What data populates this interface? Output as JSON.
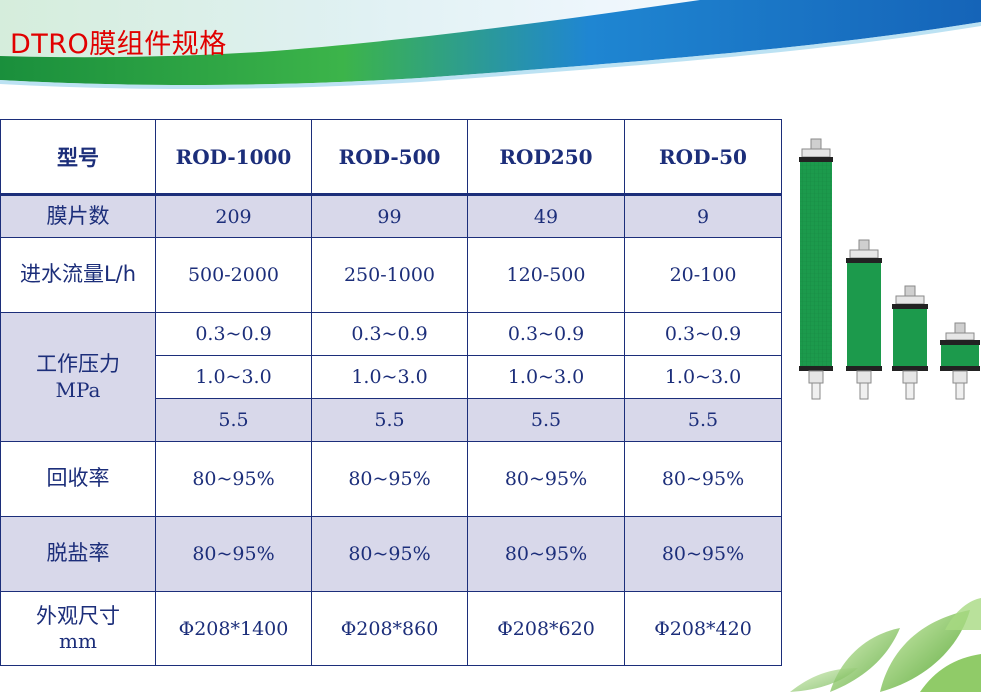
{
  "title": "DTRO膜组件规格",
  "table": {
    "header": {
      "label": "型号",
      "models": [
        "ROD-1000",
        "ROD-500",
        "ROD250",
        "ROD-50"
      ]
    },
    "rows": {
      "membranes": {
        "label": "膜片数",
        "values": [
          "209",
          "99",
          "49",
          "9"
        ]
      },
      "inflow": {
        "label": "进水流量L/h",
        "values": [
          "500-2000",
          "250-1000",
          "120-500",
          "20-100"
        ]
      },
      "pressure": {
        "label": "工作压力",
        "unit": "MPa",
        "rows": [
          [
            "0.3~0.9",
            "0.3~0.9",
            "0.3~0.9",
            "0.3~0.9"
          ],
          [
            "1.0~3.0",
            "1.0~3.0",
            "1.0~3.0",
            "1.0~3.0"
          ],
          [
            "5.5",
            "5.5",
            "5.5",
            "5.5"
          ]
        ]
      },
      "recovery": {
        "label": "回收率",
        "values": [
          "80~95%",
          "80~95%",
          "80~95%",
          "80~95%"
        ]
      },
      "desalination": {
        "label": "脱盐率",
        "values": [
          "80~95%",
          "80~95%",
          "80~95%",
          "80~95%"
        ]
      },
      "dimensions": {
        "label": "外观尺寸",
        "unit": "mm",
        "values": [
          "Φ208*1400",
          "Φ208*860",
          "Φ208*620",
          "Φ208*420"
        ]
      }
    }
  },
  "colors": {
    "title": "#e10000",
    "table_text": "#1c2e7a",
    "row_shade": "#d8d8ea",
    "module_green": "#1c9a4c",
    "banner_blue": "#1f7fd0",
    "banner_green": "#2bb34a"
  }
}
